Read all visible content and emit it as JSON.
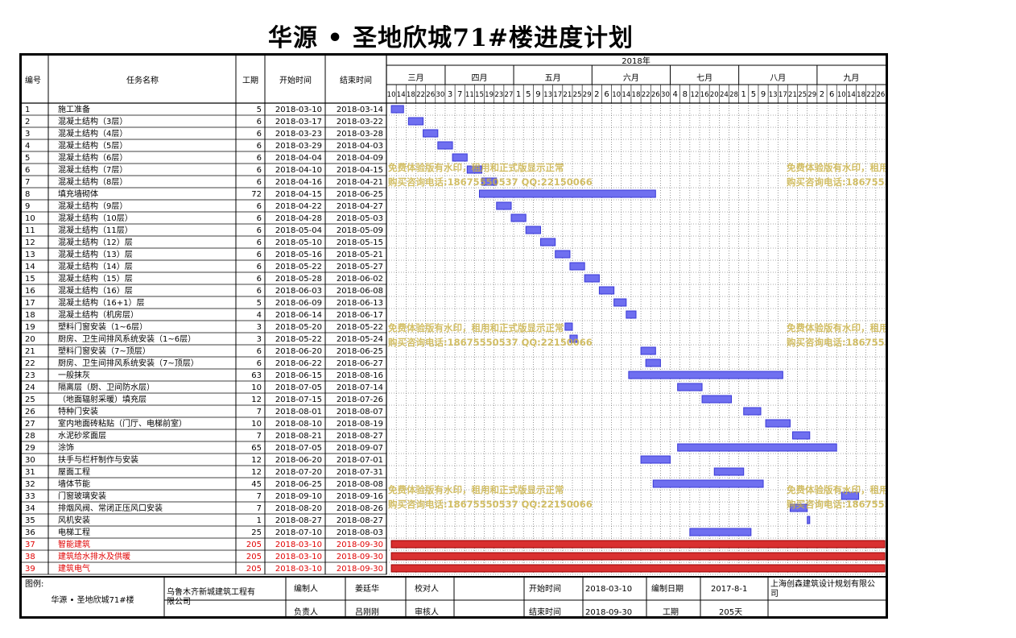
{
  "title": "华源 • 圣地欣城71#楼进度计划",
  "headers": {
    "no": "编号",
    "name": "任务名称",
    "dur": "工期",
    "start": "开始时间",
    "end": "结束时间",
    "year": "2018年"
  },
  "months": [
    "三月",
    "四月",
    "五月",
    "六月",
    "七月",
    "八月",
    "九月"
  ],
  "days": [
    "10",
    "14",
    "18",
    "22",
    "26",
    "30",
    "3",
    "7",
    "11",
    "15",
    "19",
    "23",
    "27",
    "1",
    "5",
    "9",
    "13",
    "17",
    "21",
    "25",
    "29",
    "2",
    "6",
    "10",
    "14",
    "18",
    "22",
    "26",
    "30",
    "4",
    "8",
    "12",
    "16",
    "20",
    "24",
    "28",
    "1",
    "5",
    "9",
    "13",
    "17",
    "21",
    "25",
    "29",
    "2",
    "6",
    "10",
    "14",
    "18",
    "22",
    "26"
  ],
  "tasks": [
    {
      "no": "1",
      "name": "施工准备",
      "dur": "5",
      "start": "2018-03-10",
      "end": "2018-03-14"
    },
    {
      "no": "2",
      "name": "混凝土结构（3层）",
      "dur": "6",
      "start": "2018-03-17",
      "end": "2018-03-22"
    },
    {
      "no": "3",
      "name": "混凝土结构（4层）",
      "dur": "6",
      "start": "2018-03-23",
      "end": "2018-03-28"
    },
    {
      "no": "4",
      "name": "混凝土结构（5层）",
      "dur": "6",
      "start": "2018-03-29",
      "end": "2018-04-03"
    },
    {
      "no": "5",
      "name": "混凝土结构（6层）",
      "dur": "6",
      "start": "2018-04-04",
      "end": "2018-04-09"
    },
    {
      "no": "6",
      "name": "混凝土结构（7层）",
      "dur": "6",
      "start": "2018-04-10",
      "end": "2018-04-15"
    },
    {
      "no": "7",
      "name": "混凝土结构（8层）",
      "dur": "6",
      "start": "2018-04-16",
      "end": "2018-04-21"
    },
    {
      "no": "8",
      "name": "填充墙砌体",
      "dur": "72",
      "start": "2018-04-15",
      "end": "2018-06-25"
    },
    {
      "no": "9",
      "name": "混凝土结构（9层）",
      "dur": "6",
      "start": "2018-04-22",
      "end": "2018-04-27"
    },
    {
      "no": "10",
      "name": "混凝土结构（10层）",
      "dur": "6",
      "start": "2018-04-28",
      "end": "2018-05-03"
    },
    {
      "no": "11",
      "name": "混凝土结构（11层）",
      "dur": "6",
      "start": "2018-05-04",
      "end": "2018-05-09"
    },
    {
      "no": "12",
      "name": "混凝土结构（12）层",
      "dur": "6",
      "start": "2018-05-10",
      "end": "2018-05-15"
    },
    {
      "no": "13",
      "name": "混凝土结构（13）层",
      "dur": "6",
      "start": "2018-05-16",
      "end": "2018-05-21"
    },
    {
      "no": "14",
      "name": "混凝土结构（14）层",
      "dur": "6",
      "start": "2018-05-22",
      "end": "2018-05-27"
    },
    {
      "no": "15",
      "name": "混凝土结构（15）层",
      "dur": "6",
      "start": "2018-05-28",
      "end": "2018-06-02"
    },
    {
      "no": "16",
      "name": "混凝土结构（16）层",
      "dur": "6",
      "start": "2018-06-03",
      "end": "2018-06-08"
    },
    {
      "no": "17",
      "name": "混凝土结构（16+1）层",
      "dur": "5",
      "start": "2018-06-09",
      "end": "2018-06-13"
    },
    {
      "no": "18",
      "name": "混凝土结构（机房层）",
      "dur": "4",
      "start": "2018-06-14",
      "end": "2018-06-17"
    },
    {
      "no": "19",
      "name": "塑料门窗安装（1~6层）",
      "dur": "3",
      "start": "2018-05-20",
      "end": "2018-05-22"
    },
    {
      "no": "20",
      "name": "厨房、卫生间排风系统安装（1~6层）",
      "dur": "3",
      "start": "2018-05-22",
      "end": "2018-05-24"
    },
    {
      "no": "21",
      "name": "塑料门窗安装（7~顶层）",
      "dur": "6",
      "start": "2018-06-20",
      "end": "2018-06-25"
    },
    {
      "no": "22",
      "name": "厨房、卫生间排风系统安装（7~顶层）",
      "dur": "6",
      "start": "2018-06-22",
      "end": "2018-06-27"
    },
    {
      "no": "23",
      "name": "一般抹灰",
      "dur": "63",
      "start": "2018-06-15",
      "end": "2018-08-16"
    },
    {
      "no": "24",
      "name": "隔离层（厨、卫间防水层）",
      "dur": "10",
      "start": "2018-07-05",
      "end": "2018-07-14"
    },
    {
      "no": "25",
      "name": "（地面辐射采暖）填充层",
      "dur": "12",
      "start": "2018-07-15",
      "end": "2018-07-26"
    },
    {
      "no": "26",
      "name": "特种门安装",
      "dur": "7",
      "start": "2018-08-01",
      "end": "2018-08-07"
    },
    {
      "no": "27",
      "name": "室内地面砖粘贴（门厅、电梯前室）",
      "dur": "10",
      "start": "2018-08-10",
      "end": "2018-08-19"
    },
    {
      "no": "28",
      "name": "水泥砂浆面层",
      "dur": "7",
      "start": "2018-08-21",
      "end": "2018-08-27"
    },
    {
      "no": "29",
      "name": "涂饰",
      "dur": "65",
      "start": "2018-07-05",
      "end": "2018-09-07"
    },
    {
      "no": "30",
      "name": "扶手与栏杆制作与安装",
      "dur": "12",
      "start": "2018-06-20",
      "end": "2018-07-01"
    },
    {
      "no": "31",
      "name": "屋面工程",
      "dur": "12",
      "start": "2018-07-20",
      "end": "2018-07-31"
    },
    {
      "no": "32",
      "name": "墙体节能",
      "dur": "45",
      "start": "2018-06-25",
      "end": "2018-08-08"
    },
    {
      "no": "33",
      "name": "门窗玻璃安装",
      "dur": "7",
      "start": "2018-09-10",
      "end": "2018-09-16"
    },
    {
      "no": "34",
      "name": "排烟风阀、常闭正压风口安装",
      "dur": "7",
      "start": "2018-08-20",
      "end": "2018-08-26"
    },
    {
      "no": "35",
      "name": "风机安装",
      "dur": "1",
      "start": "2018-08-27",
      "end": "2018-08-27"
    },
    {
      "no": "36",
      "name": "电梯工程",
      "dur": "25",
      "start": "2018-07-10",
      "end": "2018-08-03"
    },
    {
      "no": "37",
      "name": "智能建筑",
      "dur": "205",
      "start": "2018-03-10",
      "end": "2018-09-30",
      "red": true
    },
    {
      "no": "38",
      "name": "建筑给水排水及供暖",
      "dur": "205",
      "start": "2018-03-10",
      "end": "2018-09-30",
      "red": true
    },
    {
      "no": "39",
      "name": "建筑电气",
      "dur": "205",
      "start": "2018-03-10",
      "end": "2018-09-30",
      "red": true
    }
  ],
  "footer": {
    "legend_label": "图例:",
    "project": "华源 • 圣地欣城71#楼",
    "contractor": "乌鲁木齐新城建筑工程有限公司",
    "editor_label": "编制人",
    "editor": "姜廷华",
    "checker_label": "校对人",
    "checker": "",
    "start_label": "开始时间",
    "start": "2018-03-10",
    "date_label": "编制日期",
    "date": "2017-8-1",
    "designer": "上海创森建筑设计规划有限公司",
    "leader_label": "负责人",
    "leader": "吕刚刚",
    "reviewer_label": "审核人",
    "reviewer": "",
    "end_label": "结束时间",
    "end": "2018-09-30",
    "duration_label": "工期",
    "duration": "205天"
  },
  "watermark": {
    "line1": "免费体验版有水印，租用和正式版显示正常",
    "line2": "购买咨询电话:18675550537 QQ:22150066"
  },
  "colors": {
    "bar": "#3a3ad8",
    "bar_fill": "#6f6ff0",
    "red_bar": "#d93030",
    "red_text": "#e00000",
    "watermark": "#c9b040"
  }
}
